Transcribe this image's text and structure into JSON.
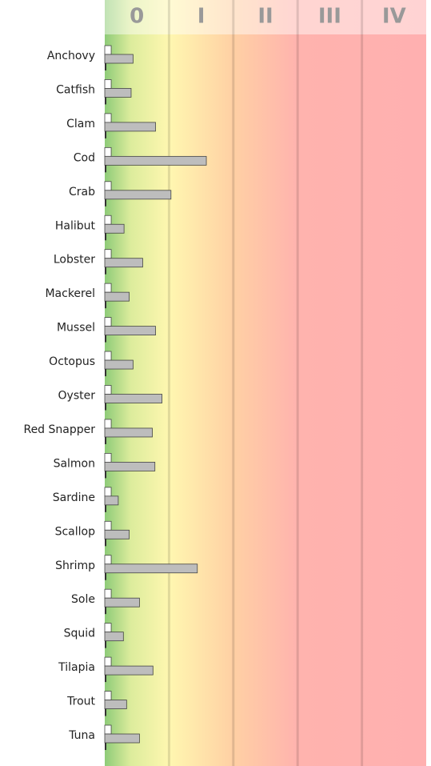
{
  "chart_data": {
    "type": "bar",
    "orientation": "horizontal",
    "zones": [
      "0",
      "I",
      "II",
      "III",
      "IV"
    ],
    "categories": [
      "Anchovy",
      "Catfish",
      "Clam",
      "Cod",
      "Crab",
      "Halibut",
      "Lobster",
      "Mackerel",
      "Mussel",
      "Octopus",
      "Oyster",
      "Red Snapper",
      "Salmon",
      "Sardine",
      "Scallop",
      "Shrimp",
      "Sole",
      "Squid",
      "Tilapia",
      "Trout",
      "Tuna"
    ],
    "series": [
      {
        "color": "#ffffff",
        "values": [
          0.1,
          0.1,
          0.1,
          0.1,
          0.1,
          0.1,
          0.1,
          0.1,
          0.1,
          0.1,
          0.1,
          0.1,
          0.1,
          0.1,
          0.1,
          0.1,
          0.1,
          0.1,
          0.1,
          0.1,
          0.1
        ]
      },
      {
        "color": "#bdbdbd",
        "values": [
          0.44,
          0.41,
          0.79,
          1.58,
          1.03,
          0.3,
          0.59,
          0.38,
          0.79,
          0.44,
          0.89,
          0.74,
          0.78,
          0.21,
          0.38,
          1.44,
          0.54,
          0.29,
          0.75,
          0.34,
          0.54
        ]
      },
      {
        "color": "#333333",
        "values": [
          0.02,
          0.02,
          0.02,
          0.02,
          0.02,
          0.02,
          0.02,
          0.02,
          0.02,
          0.02,
          0.02,
          0.02,
          0.02,
          0.02,
          0.02,
          0.02,
          0.02,
          0.02,
          0.02,
          0.02,
          0.02
        ]
      }
    ],
    "xlim": [
      0,
      5
    ],
    "xticks": [
      1,
      2,
      3,
      4
    ],
    "grid": true
  }
}
